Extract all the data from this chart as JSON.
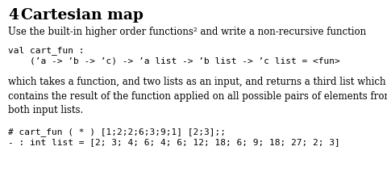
{
  "bg_color": "#ffffff",
  "heading_number": "4",
  "heading_text": "Cartesian map",
  "body_text1": "Use the built-in higher order functions² and write a non-recursive function",
  "code_line1": "val cart_fun :",
  "code_line2": "    (’a -> ’b -> ’c) -> ’a list -> ’b list -> ’c list = <fun>",
  "body_text2": "which takes a function, and two lists as an input, and returns a third list which\ncontains the result of the function applied on all possible pairs of elements from\nboth input lists.",
  "code_line3": "# cart_fun ( * ) [1;2;2;6;3;9;1] [2;3];;",
  "code_line4": "- : int list = [2; 3; 4; 6; 4; 6; 12; 18; 6; 9; 18; 27; 2; 3]",
  "heading_fontsize": 13.5,
  "body_fontsize": 8.5,
  "code_fontsize": 8.0,
  "heading_color": "#000000",
  "body_color": "#000000",
  "code_color": "#000000"
}
